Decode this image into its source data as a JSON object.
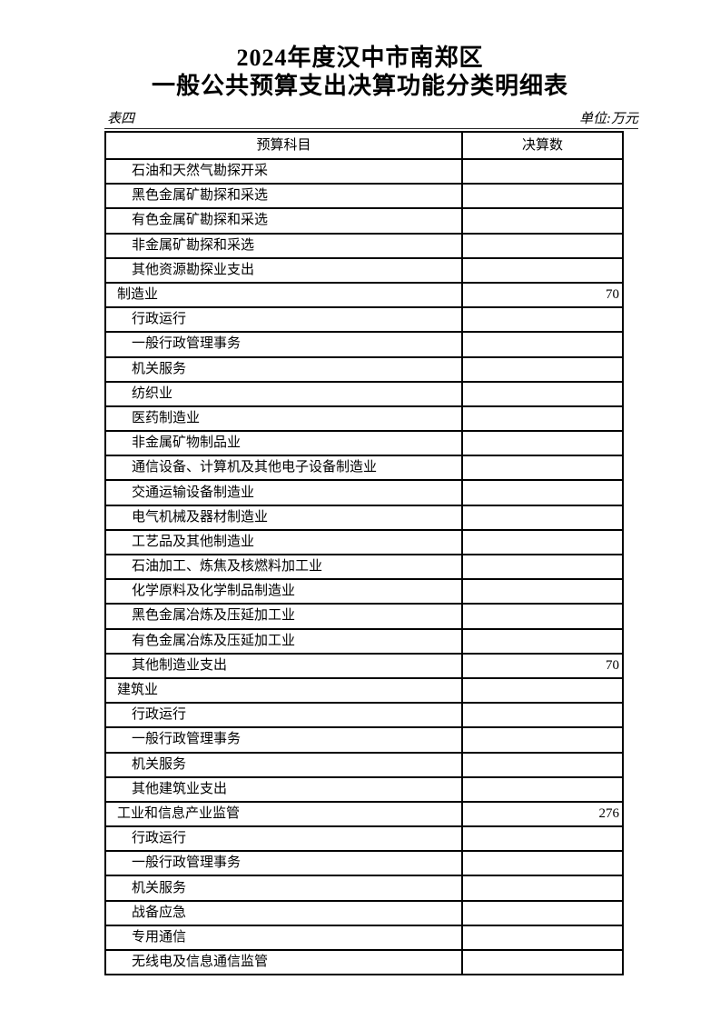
{
  "page": {
    "title_line1": "2024年度汉中市南郑区",
    "title_line2": "一般公共预算支出决算功能分类明细表",
    "table_label": "表四",
    "unit_label": "单位:万元"
  },
  "table": {
    "columns": [
      "预算科目",
      "决算数"
    ],
    "rows": [
      {
        "subject": "石油和天然气勘探开采",
        "level": 2,
        "amount": ""
      },
      {
        "subject": "黑色金属矿勘探和采选",
        "level": 2,
        "amount": ""
      },
      {
        "subject": "有色金属矿勘探和采选",
        "level": 2,
        "amount": ""
      },
      {
        "subject": "非金属矿勘探和采选",
        "level": 2,
        "amount": ""
      },
      {
        "subject": "其他资源勘探业支出",
        "level": 2,
        "amount": ""
      },
      {
        "subject": "制造业",
        "level": 1,
        "amount": "70"
      },
      {
        "subject": "行政运行",
        "level": 2,
        "amount": ""
      },
      {
        "subject": "一般行政管理事务",
        "level": 2,
        "amount": ""
      },
      {
        "subject": "机关服务",
        "level": 2,
        "amount": ""
      },
      {
        "subject": "纺织业",
        "level": 2,
        "amount": ""
      },
      {
        "subject": "医药制造业",
        "level": 2,
        "amount": ""
      },
      {
        "subject": "非金属矿物制品业",
        "level": 2,
        "amount": ""
      },
      {
        "subject": "通信设备、计算机及其他电子设备制造业",
        "level": 2,
        "amount": ""
      },
      {
        "subject": "交通运输设备制造业",
        "level": 2,
        "amount": ""
      },
      {
        "subject": "电气机械及器材制造业",
        "level": 2,
        "amount": ""
      },
      {
        "subject": "工艺品及其他制造业",
        "level": 2,
        "amount": ""
      },
      {
        "subject": "石油加工、炼焦及核燃料加工业",
        "level": 2,
        "amount": ""
      },
      {
        "subject": "化学原料及化学制品制造业",
        "level": 2,
        "amount": ""
      },
      {
        "subject": "黑色金属冶炼及压延加工业",
        "level": 2,
        "amount": ""
      },
      {
        "subject": "有色金属冶炼及压延加工业",
        "level": 2,
        "amount": ""
      },
      {
        "subject": "其他制造业支出",
        "level": 2,
        "amount": "70"
      },
      {
        "subject": "建筑业",
        "level": 1,
        "amount": ""
      },
      {
        "subject": "行政运行",
        "level": 2,
        "amount": ""
      },
      {
        "subject": "一般行政管理事务",
        "level": 2,
        "amount": ""
      },
      {
        "subject": "机关服务",
        "level": 2,
        "amount": ""
      },
      {
        "subject": "其他建筑业支出",
        "level": 2,
        "amount": ""
      },
      {
        "subject": "工业和信息产业监管",
        "level": 1,
        "amount": "276"
      },
      {
        "subject": "行政运行",
        "level": 2,
        "amount": ""
      },
      {
        "subject": "一般行政管理事务",
        "level": 2,
        "amount": ""
      },
      {
        "subject": "机关服务",
        "level": 2,
        "amount": ""
      },
      {
        "subject": "战备应急",
        "level": 2,
        "amount": ""
      },
      {
        "subject": "专用通信",
        "level": 2,
        "amount": ""
      },
      {
        "subject": "无线电及信息通信监管",
        "level": 2,
        "amount": ""
      }
    ]
  }
}
